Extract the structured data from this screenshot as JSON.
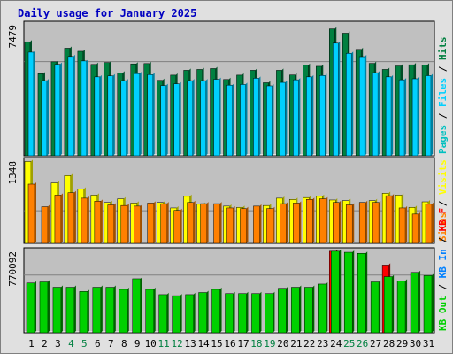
{
  "title": "Daily usage for January 2025",
  "colors": {
    "frame_bg": "#e0e0e0",
    "plot_bg": "#c0c0c0",
    "grid": "#808080",
    "title": "#0000c0",
    "day_normal": "#000000",
    "day_weekend": "#008040",
    "hits_front": "#008040",
    "hits_side": "#004d26",
    "files_front": "#00d0ff",
    "files_side": "#0080a0",
    "pages_front": "#00c0c0",
    "visits_front": "#ffff00",
    "visits_side": "#a0a000",
    "sites_front": "#ff8000",
    "sites_side": "#a05000",
    "kbf_front": "#ff0000",
    "kbf_side": "#800000",
    "kbin_front": "#0080ff",
    "kbout_front": "#00d000",
    "kbout_side": "#006000"
  },
  "chart_data": [
    {
      "type": "bar",
      "panel": "hits-files-pages",
      "ytick_label": "7479",
      "ylim": [
        0,
        7479
      ],
      "grid": true,
      "categories": [
        "1",
        "2",
        "3",
        "4",
        "5",
        "6",
        "7",
        "8",
        "9",
        "10",
        "11",
        "12",
        "13",
        "14",
        "15",
        "16",
        "17",
        "18",
        "19",
        "20",
        "21",
        "22",
        "23",
        "24",
        "25",
        "26",
        "27",
        "28",
        "29",
        "30",
        "31"
      ],
      "weekend_days": [
        "4",
        "5",
        "11",
        "12",
        "18",
        "19",
        "25",
        "26"
      ],
      "legend": [
        {
          "label": "Hits",
          "color_key": "hits_front"
        },
        {
          "label": "Files",
          "color_key": "files_front"
        },
        {
          "label": "Pages",
          "color_key": "pages_front"
        }
      ],
      "series": [
        {
          "name": "Hits",
          "values": [
            6600,
            4750,
            5440,
            6230,
            6050,
            5290,
            5400,
            4800,
            5320,
            5340,
            4370,
            4670,
            4950,
            5000,
            5050,
            4420,
            4670,
            4950,
            4230,
            4950,
            4680,
            5240,
            5180,
            7350,
            7100,
            6160,
            5350,
            5000,
            5200,
            5270,
            5260
          ]
        },
        {
          "name": "Files",
          "values": [
            6000,
            4350,
            5300,
            5750,
            5490,
            4570,
            4630,
            4350,
            4760,
            4700,
            4070,
            4170,
            4350,
            4350,
            4430,
            4090,
            4130,
            4490,
            4050,
            4250,
            4400,
            4570,
            4650,
            6520,
            5930,
            5740,
            4810,
            4570,
            4400,
            4460,
            4640
          ]
        },
        {
          "name": "Pages",
          "values": [
            0,
            0,
            0,
            0,
            0,
            0,
            0,
            0,
            0,
            0,
            0,
            0,
            0,
            0,
            0,
            0,
            0,
            0,
            0,
            0,
            0,
            0,
            0,
            0,
            0,
            0,
            0,
            0,
            0,
            0,
            0
          ]
        }
      ]
    },
    {
      "type": "bar",
      "panel": "visits-sites",
      "ytick_label": "1348",
      "ylim": [
        0,
        1348
      ],
      "grid": true,
      "categories": [
        "1",
        "2",
        "3",
        "4",
        "5",
        "6",
        "7",
        "8",
        "9",
        "10",
        "11",
        "12",
        "13",
        "14",
        "15",
        "16",
        "17",
        "18",
        "19",
        "20",
        "21",
        "22",
        "23",
        "24",
        "25",
        "26",
        "27",
        "28",
        "29",
        "30",
        "31"
      ],
      "legend": [
        {
          "label": "Visits",
          "color_key": "visits_front"
        },
        {
          "label": "Sites",
          "color_key": "sites_front"
        }
      ],
      "series": [
        {
          "name": "Visits",
          "values": [
            1340,
            0,
            990,
            1110,
            890,
            790,
            670,
            730,
            660,
            0,
            670,
            580,
            770,
            640,
            0,
            610,
            590,
            0,
            620,
            740,
            720,
            750,
            770,
            710,
            700,
            0,
            700,
            820,
            790,
            590,
            680
          ]
        },
        {
          "name": "Sites",
          "values": [
            970,
            600,
            790,
            830,
            740,
            690,
            630,
            620,
            610,
            660,
            650,
            540,
            670,
            650,
            650,
            580,
            570,
            610,
            570,
            650,
            660,
            720,
            730,
            670,
            630,
            670,
            670,
            780,
            580,
            480,
            640
          ]
        }
      ]
    },
    {
      "type": "bar",
      "panel": "kbytes",
      "ytick_label": "770092",
      "ylim": [
        0,
        770092
      ],
      "grid": true,
      "categories": [
        "1",
        "2",
        "3",
        "4",
        "5",
        "6",
        "7",
        "8",
        "9",
        "10",
        "11",
        "12",
        "13",
        "14",
        "15",
        "16",
        "17",
        "18",
        "19",
        "20",
        "21",
        "22",
        "23",
        "24",
        "25",
        "26",
        "27",
        "28",
        "29",
        "30",
        "31"
      ],
      "legend": [
        {
          "label": "KB F",
          "color_key": "kbf_front"
        },
        {
          "label": "KB In",
          "color_key": "kbin_front"
        },
        {
          "label": "KB Out",
          "color_key": "kbout_front"
        }
      ],
      "series": [
        {
          "name": "KB F",
          "values": [
            0,
            0,
            0,
            0,
            0,
            0,
            0,
            0,
            0,
            0,
            0,
            0,
            0,
            0,
            0,
            0,
            0,
            0,
            0,
            0,
            0,
            0,
            0,
            770092,
            0,
            0,
            0,
            640000,
            0,
            0,
            0
          ]
        },
        {
          "name": "KB In",
          "values": [
            0,
            0,
            0,
            0,
            0,
            0,
            0,
            0,
            0,
            0,
            0,
            0,
            0,
            0,
            0,
            0,
            0,
            0,
            0,
            0,
            0,
            0,
            0,
            0,
            0,
            0,
            0,
            0,
            0,
            0,
            0
          ]
        },
        {
          "name": "KB Out",
          "values": [
            470000,
            480000,
            430000,
            430000,
            390000,
            430000,
            430000,
            410000,
            510000,
            410000,
            360000,
            350000,
            360000,
            380000,
            410000,
            370000,
            370000,
            370000,
            370000,
            420000,
            430000,
            430000,
            460000,
            770092,
            760000,
            750000,
            480000,
            530000,
            490000,
            570000,
            540000
          ]
        }
      ]
    }
  ]
}
